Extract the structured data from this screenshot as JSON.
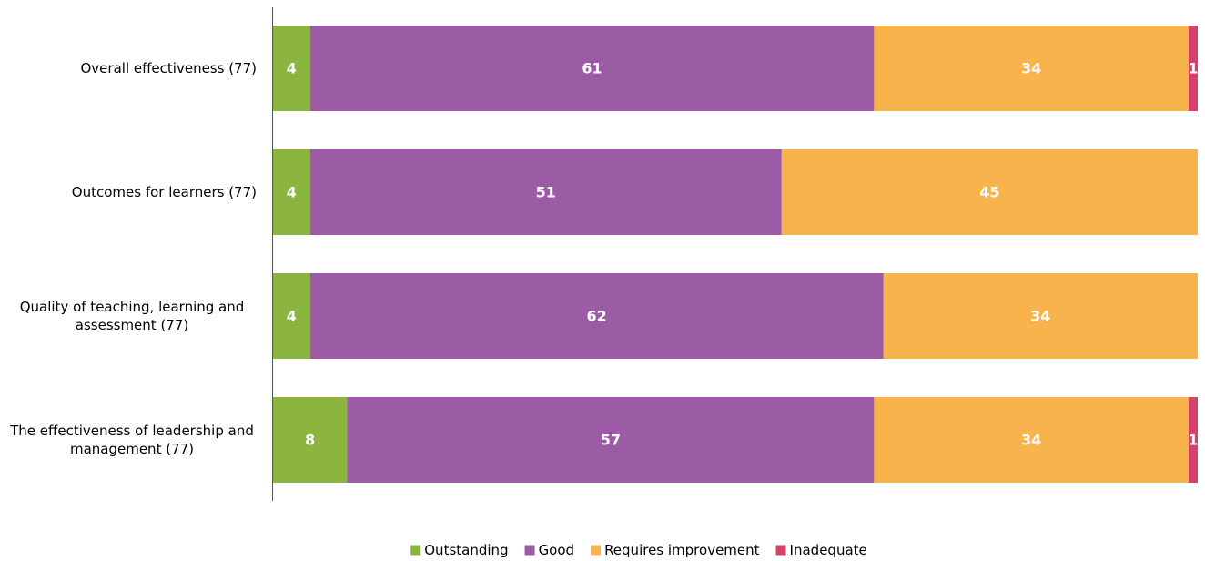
{
  "chart_data": {
    "type": "bar",
    "orientation": "horizontal",
    "stacked": true,
    "percent_stacked": true,
    "title": "",
    "xlabel": "",
    "ylabel": "",
    "xlim": [
      0,
      100
    ],
    "grid": false,
    "legend_position": "bottom",
    "categories": [
      "Overall effectiveness (77)",
      "Outcomes for learners (77)",
      "Quality of teaching, learning and assessment (77)",
      "The effectiveness of leadership and management (77)"
    ],
    "series": [
      {
        "name": "Outstanding",
        "color": "#8bb53f",
        "values": [
          4,
          4,
          4,
          8
        ]
      },
      {
        "name": "Good",
        "color": "#9b5ba5",
        "values": [
          61,
          51,
          62,
          57
        ]
      },
      {
        "name": "Requires improvement",
        "color": "#f9b34d",
        "values": [
          34,
          45,
          34,
          34
        ]
      },
      {
        "name": "Inadequate",
        "color": "#d6416a",
        "values": [
          1,
          0,
          0,
          1
        ]
      }
    ]
  }
}
